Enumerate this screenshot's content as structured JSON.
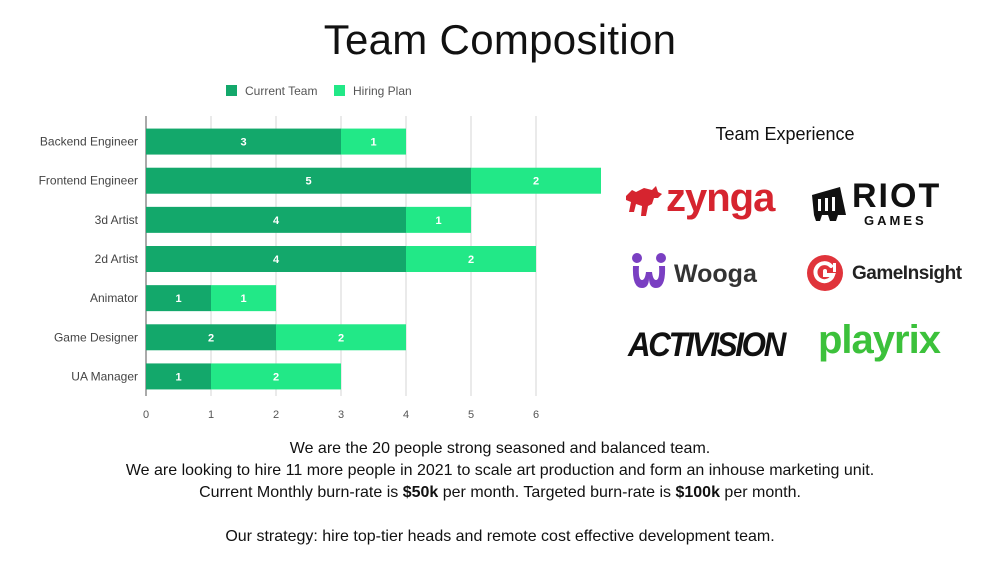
{
  "title": "Team Composition",
  "chart_data": {
    "type": "bar",
    "orientation": "horizontal",
    "stacked": true,
    "categories": [
      "Backend Engineer",
      "Frontend Engineer",
      "3d Artist",
      "2d Artist",
      "Animator",
      "Game Designer",
      "UA Manager"
    ],
    "series": [
      {
        "name": "Current Team",
        "color": "#13a86b",
        "values": [
          3,
          5,
          4,
          4,
          1,
          2,
          1
        ]
      },
      {
        "name": "Hiring Plan",
        "color": "#22e887",
        "values": [
          1,
          2,
          1,
          2,
          1,
          2,
          2
        ]
      }
    ],
    "xticks": [
      0,
      1,
      2,
      3,
      4,
      5,
      6
    ],
    "xlim": [
      0,
      7
    ],
    "grid": true,
    "legend": "top"
  },
  "experience": {
    "title": "Team Experience",
    "logos": {
      "zynga": "zynga",
      "riot_top": "RIOT",
      "riot_bottom": "GAMES",
      "wooga": "Wooga",
      "gameinsight": "GameInsight",
      "activision": "ACTIVISION",
      "playrix": "playrix"
    }
  },
  "summary": {
    "line1": "We are the 20 people strong seasoned and balanced team.",
    "line2": "We are looking to hire 11 more people in 2021 to scale art production and form an inhouse marketing unit.",
    "line3_a": "Current Monthly burn-rate is ",
    "line3_b": "$50k",
    "line3_c": " per month. Targeted burn-rate is ",
    "line3_d": "$100k",
    "line3_e": " per month.",
    "line4": "Our strategy: hire top-tier heads and remote cost effective development team."
  },
  "colors": {
    "zynga_red": "#d6242f",
    "wooga_purple": "#7a3fc2",
    "gameinsight_red": "#e0343b",
    "playrix_green": "#3cc13b"
  }
}
